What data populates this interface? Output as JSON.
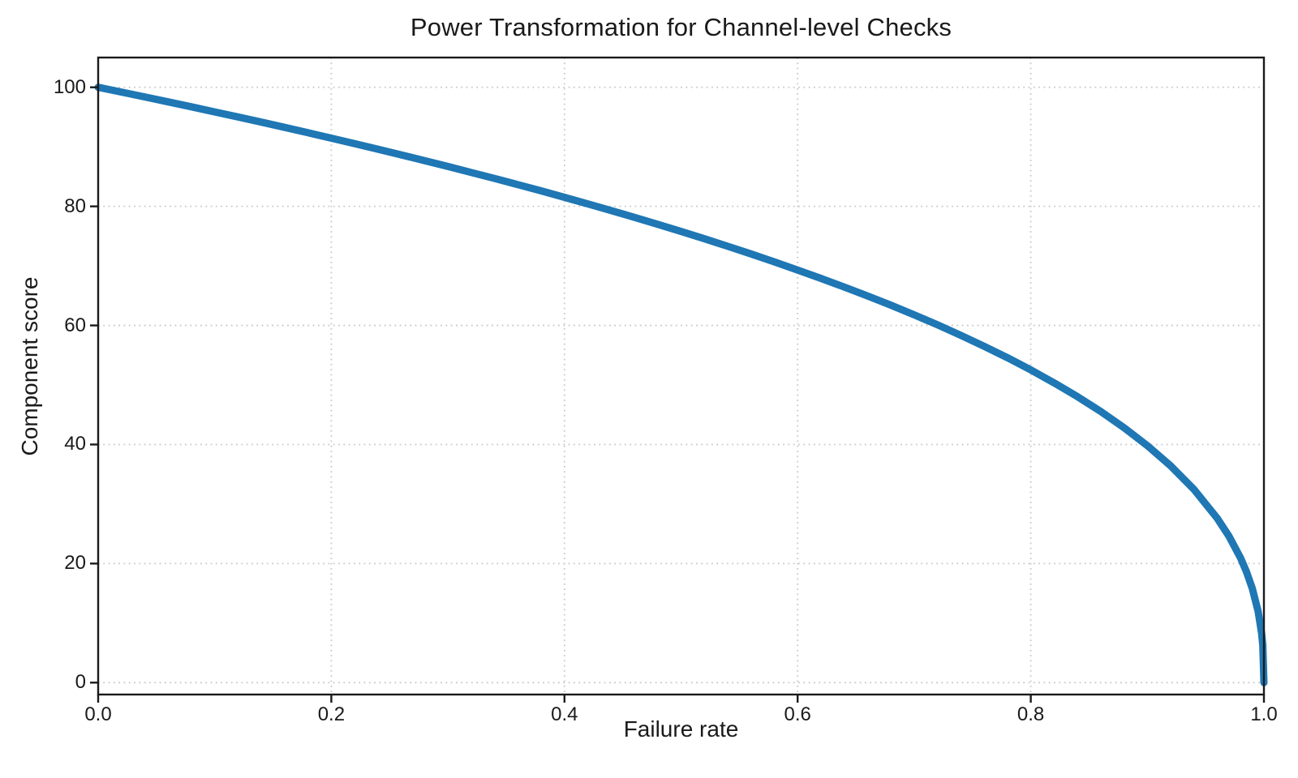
{
  "chart_data": {
    "type": "line",
    "title": "Power Transformation for Channel-level Checks",
    "xlabel": "Failure rate",
    "ylabel": "Component score",
    "xlim": [
      0,
      1
    ],
    "ylim": [
      -2,
      105
    ],
    "grid": true,
    "grid_style": "dotted",
    "legend": "none",
    "colors": {
      "line": "#1f77b4",
      "grid": "#c9c9c9",
      "spine": "#1a1a1a",
      "text": "#1a1a1a",
      "background": "#ffffff"
    },
    "xticks": [
      {
        "value": 0.0,
        "label": "0.0"
      },
      {
        "value": 0.2,
        "label": "0.2"
      },
      {
        "value": 0.4,
        "label": "0.4"
      },
      {
        "value": 0.6,
        "label": "0.6"
      },
      {
        "value": 0.8,
        "label": "0.8"
      },
      {
        "value": 1.0,
        "label": "1.0"
      }
    ],
    "yticks": [
      {
        "value": 0,
        "label": "0"
      },
      {
        "value": 20,
        "label": "20"
      },
      {
        "value": 40,
        "label": "40"
      },
      {
        "value": 60,
        "label": "60"
      },
      {
        "value": 80,
        "label": "80"
      },
      {
        "value": 100,
        "label": "100"
      }
    ],
    "x": [
      0,
      0.02,
      0.04,
      0.06,
      0.08,
      0.1,
      0.12,
      0.14,
      0.16,
      0.18,
      0.2,
      0.22,
      0.24,
      0.26,
      0.28,
      0.3,
      0.32,
      0.34,
      0.36,
      0.38,
      0.4,
      0.42,
      0.44,
      0.46,
      0.48,
      0.5,
      0.52,
      0.54,
      0.56,
      0.58,
      0.6,
      0.62,
      0.64,
      0.66,
      0.68,
      0.7,
      0.72,
      0.74,
      0.76,
      0.78,
      0.8,
      0.82,
      0.84,
      0.86,
      0.88,
      0.9,
      0.92,
      0.94,
      0.96,
      0.97,
      0.98,
      0.985,
      0.99,
      0.995,
      0.998,
      0.999,
      1.0
    ],
    "y": [
      100,
      99.2,
      98.38,
      97.56,
      96.72,
      95.87,
      95.02,
      94.15,
      93.26,
      92.37,
      91.46,
      90.54,
      89.6,
      88.65,
      87.69,
      86.7,
      85.7,
      84.69,
      83.65,
      82.6,
      81.52,
      80.42,
      79.3,
      78.15,
      76.98,
      75.79,
      74.56,
      73.3,
      72.01,
      70.68,
      69.31,
      67.91,
      66.45,
      64.95,
      63.4,
      61.78,
      60.1,
      58.34,
      56.5,
      54.57,
      52.53,
      50.36,
      48.04,
      45.55,
      42.82,
      39.81,
      36.41,
      32.45,
      27.59,
      24.6,
      20.91,
      18.64,
      15.85,
      12.01,
      8.33,
      6.31,
      0
    ]
  }
}
